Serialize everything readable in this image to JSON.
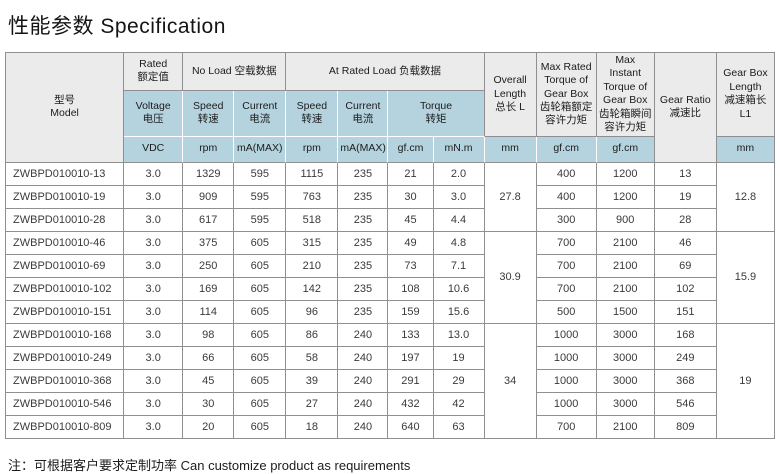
{
  "title": "性能参数 Specification",
  "note": "注：可根据客户要求定制功率  Can customize product as requirements",
  "colors": {
    "header_gray": "#ebebeb",
    "header_blue": "#b5d3de",
    "outer_border": "#8f8f8f",
    "row_border": "#b4b4b4"
  },
  "table": {
    "header": {
      "model": "型号\nModel",
      "rated": "Rated\n额定值",
      "no_load": "No Load 空载数据",
      "at_rated_load": "At Rated Load 负载数据",
      "overall_length": "Overall\nLength\n总长 L",
      "max_rated_torque": "Max Rated\nTorque of\nGear Box\n齿轮箱额定\n容许力矩",
      "max_instant_torque": "Max Instant\nTorque of\nGear Box\n齿轮箱瞬间\n容许力矩",
      "gear_ratio": "Gear Ratio\n减速比",
      "gear_box_length": "Gear Box\nLength\n减速箱长\nL1",
      "voltage": "Voltage\n电压",
      "speed": "Speed\n转速",
      "current": "Current\n电流",
      "torque": "Torque\n转矩",
      "units": {
        "vdc": "VDC",
        "rpm": "rpm",
        "ma_max": "mA(MAX)",
        "gf_cm": "gf.cm",
        "mn_m": "mN.m",
        "mm": "mm"
      }
    },
    "rows": [
      {
        "model": "ZWBPD010010-13",
        "voltage": "3.0",
        "no_load_speed": "1329",
        "no_load_current": "595",
        "load_speed": "1115",
        "load_current": "235",
        "torque_gfcm": "21",
        "torque_mnm": "2.0",
        "max_rated_torque": "400",
        "max_instant_torque": "1200",
        "gear_ratio": "13"
      },
      {
        "model": "ZWBPD010010-19",
        "voltage": "3.0",
        "no_load_speed": "909",
        "no_load_current": "595",
        "load_speed": "763",
        "load_current": "235",
        "torque_gfcm": "30",
        "torque_mnm": "3.0",
        "max_rated_torque": "400",
        "max_instant_torque": "1200",
        "gear_ratio": "19"
      },
      {
        "model": "ZWBPD010010-28",
        "voltage": "3.0",
        "no_load_speed": "617",
        "no_load_current": "595",
        "load_speed": "518",
        "load_current": "235",
        "torque_gfcm": "45",
        "torque_mnm": "4.4",
        "max_rated_torque": "300",
        "max_instant_torque": "900",
        "gear_ratio": "28"
      },
      {
        "model": "ZWBPD010010-46",
        "voltage": "3.0",
        "no_load_speed": "375",
        "no_load_current": "605",
        "load_speed": "315",
        "load_current": "235",
        "torque_gfcm": "49",
        "torque_mnm": "4.8",
        "max_rated_torque": "700",
        "max_instant_torque": "2100",
        "gear_ratio": "46"
      },
      {
        "model": "ZWBPD010010-69",
        "voltage": "3.0",
        "no_load_speed": "250",
        "no_load_current": "605",
        "load_speed": "210",
        "load_current": "235",
        "torque_gfcm": "73",
        "torque_mnm": "7.1",
        "max_rated_torque": "700",
        "max_instant_torque": "2100",
        "gear_ratio": "69"
      },
      {
        "model": "ZWBPD010010-102",
        "voltage": "3.0",
        "no_load_speed": "169",
        "no_load_current": "605",
        "load_speed": "142",
        "load_current": "235",
        "torque_gfcm": "108",
        "torque_mnm": "10.6",
        "max_rated_torque": "700",
        "max_instant_torque": "2100",
        "gear_ratio": "102"
      },
      {
        "model": "ZWBPD010010-151",
        "voltage": "3.0",
        "no_load_speed": "114",
        "no_load_current": "605",
        "load_speed": "96",
        "load_current": "235",
        "torque_gfcm": "159",
        "torque_mnm": "15.6",
        "max_rated_torque": "500",
        "max_instant_torque": "1500",
        "gear_ratio": "151"
      },
      {
        "model": "ZWBPD010010-168",
        "voltage": "3.0",
        "no_load_speed": "98",
        "no_load_current": "605",
        "load_speed": "86",
        "load_current": "240",
        "torque_gfcm": "133",
        "torque_mnm": "13.0",
        "max_rated_torque": "1000",
        "max_instant_torque": "3000",
        "gear_ratio": "168"
      },
      {
        "model": "ZWBPD010010-249",
        "voltage": "3.0",
        "no_load_speed": "66",
        "no_load_current": "605",
        "load_speed": "58",
        "load_current": "240",
        "torque_gfcm": "197",
        "torque_mnm": "19",
        "max_rated_torque": "1000",
        "max_instant_torque": "3000",
        "gear_ratio": "249"
      },
      {
        "model": "ZWBPD010010-368",
        "voltage": "3.0",
        "no_load_speed": "45",
        "no_load_current": "605",
        "load_speed": "39",
        "load_current": "240",
        "torque_gfcm": "291",
        "torque_mnm": "29",
        "max_rated_torque": "1000",
        "max_instant_torque": "3000",
        "gear_ratio": "368"
      },
      {
        "model": "ZWBPD010010-546",
        "voltage": "3.0",
        "no_load_speed": "30",
        "no_load_current": "605",
        "load_speed": "27",
        "load_current": "240",
        "torque_gfcm": "432",
        "torque_mnm": "42",
        "max_rated_torque": "1000",
        "max_instant_torque": "3000",
        "gear_ratio": "546"
      },
      {
        "model": "ZWBPD010010-809",
        "voltage": "3.0",
        "no_load_speed": "20",
        "no_load_current": "605",
        "load_speed": "18",
        "load_current": "240",
        "torque_gfcm": "640",
        "torque_mnm": "63",
        "max_rated_torque": "700",
        "max_instant_torque": "2100",
        "gear_ratio": "809"
      }
    ],
    "overall_length_groups": [
      {
        "value": "27.8",
        "start": 0,
        "span": 3
      },
      {
        "value": "30.9",
        "start": 3,
        "span": 4
      },
      {
        "value": "34",
        "start": 7,
        "span": 5
      }
    ],
    "gear_box_length_groups": [
      {
        "value": "12.8",
        "start": 0,
        "span": 3
      },
      {
        "value": "15.9",
        "start": 3,
        "span": 4
      },
      {
        "value": "19",
        "start": 7,
        "span": 5
      }
    ]
  }
}
